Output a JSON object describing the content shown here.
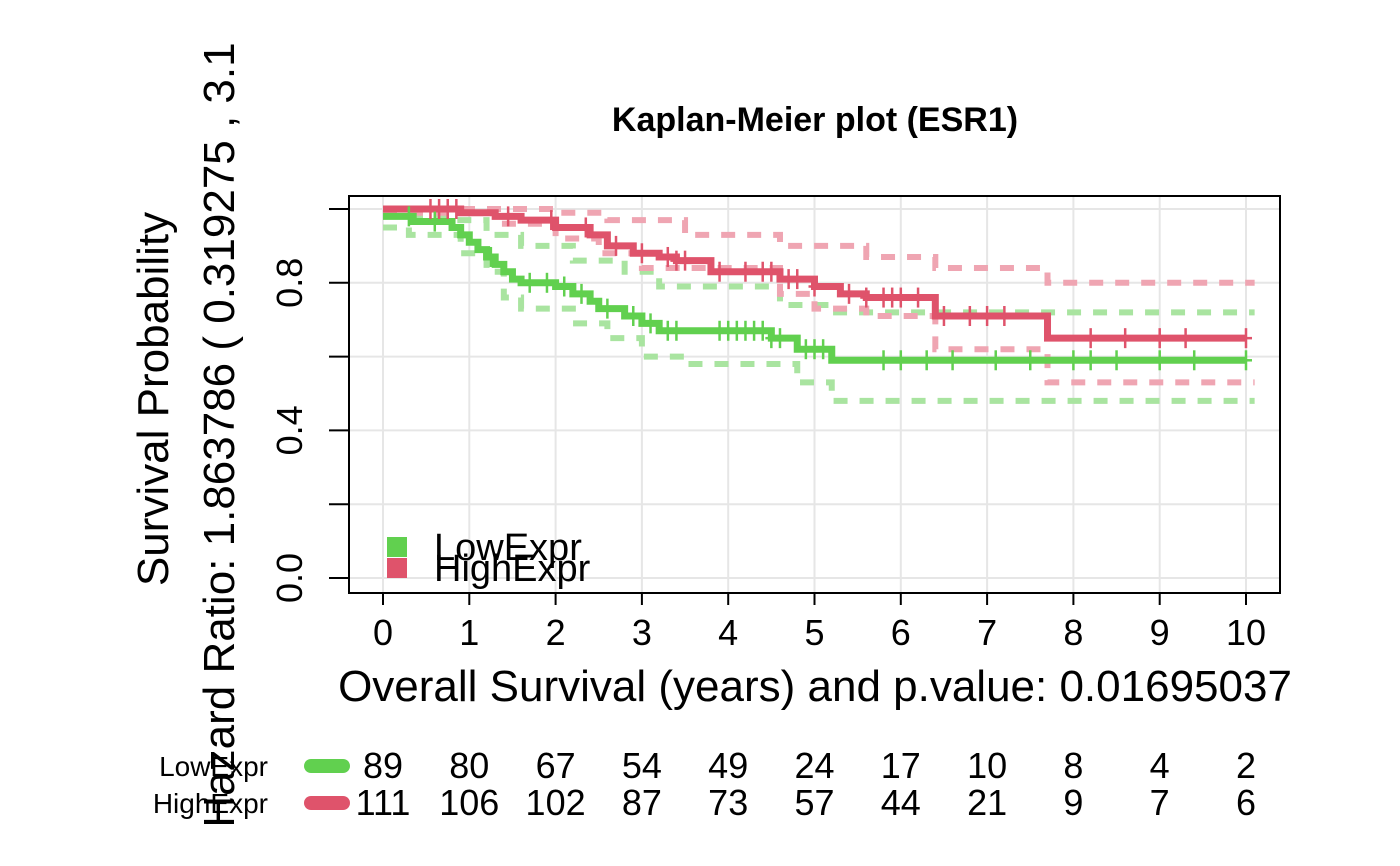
{
  "chart_data": {
    "type": "line",
    "title": "Kaplan-Meier plot (ESR1)",
    "xlabel": "Overall Survival (years) and p.value:  0.01695037",
    "ylabel": "Survival Probability",
    "hazard_label": "Hazard Ratio: 1.863786  ( 0.319275 ,  3.1",
    "xlim": [
      0,
      10
    ],
    "ylim": [
      0,
      1
    ],
    "x_ticks": [
      "0",
      "1",
      "2",
      "3",
      "4",
      "5",
      "6",
      "7",
      "8",
      "9",
      "10"
    ],
    "y_ticks": [
      "0.0",
      "0.4",
      "0.8"
    ],
    "grid": true,
    "legend_position": "bottom-left",
    "colors": {
      "LowExpr": "#61D04F",
      "HighExpr": "#DF536B"
    },
    "series": [
      {
        "name": "LowExpr",
        "color": "#61D04F",
        "step_x": [
          0,
          0.35,
          0.8,
          0.9,
          1.0,
          1.1,
          1.2,
          1.3,
          1.4,
          1.5,
          1.6,
          2.0,
          2.2,
          2.4,
          2.5,
          2.8,
          3.0,
          3.2,
          3.5,
          4.5,
          4.8,
          5.2
        ],
        "step_y": [
          0.98,
          0.966,
          0.95,
          0.93,
          0.91,
          0.89,
          0.87,
          0.85,
          0.83,
          0.81,
          0.8,
          0.79,
          0.77,
          0.75,
          0.73,
          0.71,
          0.69,
          0.67,
          0.67,
          0.65,
          0.62,
          0.59
        ],
        "end_x": 10,
        "upper_x": [
          0,
          0.8,
          1.2,
          1.6,
          2.2,
          2.8,
          3.2,
          4.6,
          5.2
        ],
        "upper_y": [
          0.98,
          0.97,
          0.93,
          0.9,
          0.86,
          0.83,
          0.79,
          0.74,
          0.72
        ],
        "lower_x": [
          0,
          0.3,
          0.9,
          1.2,
          1.4,
          1.6,
          2.2,
          2.6,
          3.0,
          3.5,
          4.8,
          5.2
        ],
        "lower_y": [
          0.95,
          0.93,
          0.88,
          0.83,
          0.76,
          0.73,
          0.69,
          0.65,
          0.6,
          0.58,
          0.53,
          0.48
        ],
        "censor_x": [
          0.3,
          0.6,
          1.25,
          1.7,
          1.9,
          2.1,
          2.3,
          2.6,
          2.9,
          3.1,
          3.3,
          3.4,
          3.9,
          4.0,
          4.1,
          4.2,
          4.3,
          4.4,
          4.5,
          4.6,
          4.9,
          5.0,
          5.1,
          5.8,
          6.0,
          6.3,
          6.6,
          7.1,
          7.5,
          8.0,
          8.2,
          8.5,
          9.0,
          9.4,
          10.0
        ]
      },
      {
        "name": "HighExpr",
        "color": "#DF536B",
        "step_x": [
          0,
          0.9,
          1.3,
          1.6,
          2.0,
          2.4,
          2.6,
          2.9,
          3.2,
          3.4,
          3.8,
          4.6,
          5.0,
          5.3,
          5.6,
          6.4,
          7.7
        ],
        "step_y": [
          1.0,
          0.99,
          0.98,
          0.97,
          0.95,
          0.93,
          0.9,
          0.88,
          0.87,
          0.86,
          0.83,
          0.81,
          0.79,
          0.77,
          0.76,
          0.71,
          0.65
        ],
        "end_x": 10,
        "upper_x": [
          0,
          1.3,
          2.0,
          2.6,
          3.5,
          4.6,
          5.6,
          6.4,
          7.7
        ],
        "upper_y": [
          1.0,
          1.0,
          0.99,
          0.97,
          0.93,
          0.9,
          0.87,
          0.84,
          0.8
        ],
        "lower_x": [
          0,
          1.3,
          2.0,
          2.5,
          3.0,
          4.6,
          5.0,
          5.6,
          6.4,
          7.7
        ],
        "lower_y": [
          0.99,
          0.96,
          0.92,
          0.88,
          0.84,
          0.77,
          0.73,
          0.71,
          0.62,
          0.53
        ],
        "censor_x": [
          0.55,
          0.65,
          0.75,
          0.85,
          1.45,
          1.95,
          2.35,
          2.7,
          3.0,
          3.3,
          3.4,
          3.5,
          3.9,
          4.2,
          4.4,
          4.5,
          4.7,
          4.8,
          5.0,
          5.4,
          5.6,
          5.8,
          5.9,
          6.0,
          6.2,
          6.5,
          6.8,
          7.0,
          7.2,
          8.2,
          8.6,
          9.0,
          9.3,
          10.0
        ]
      }
    ],
    "risk_table": {
      "rows": [
        {
          "name": "LowExpr",
          "counts": [
            "89",
            "80",
            "67",
            "54",
            "49",
            "24",
            "17",
            "10",
            "8",
            "4",
            "2"
          ]
        },
        {
          "name": "HighExpr",
          "counts": [
            "111",
            "106",
            "102",
            "87",
            "73",
            "57",
            "44",
            "21",
            "9",
            "7",
            "6"
          ]
        }
      ]
    }
  }
}
